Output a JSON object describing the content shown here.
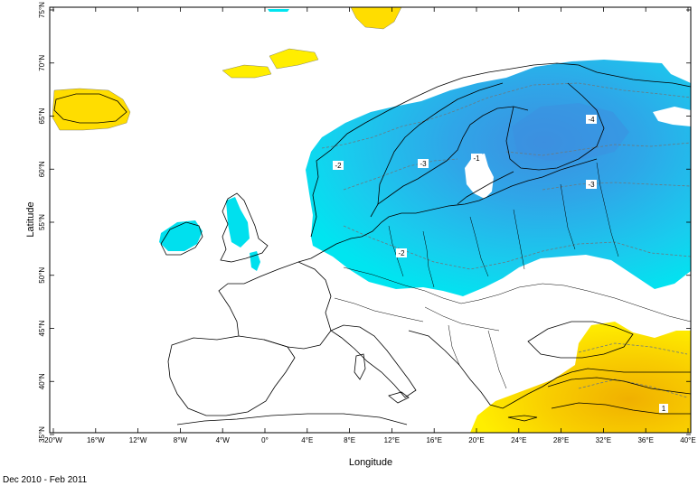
{
  "map": {
    "xlabel": "Longitude",
    "ylabel": "Latitude",
    "lon_range": [
      -20,
      40
    ],
    "lat_range": [
      35,
      75
    ],
    "lon_ticks": [
      "20°W",
      "16°W",
      "12°W",
      "8°W",
      "4°W",
      "0°",
      "4°E",
      "8°E",
      "12°E",
      "16°E",
      "20°E",
      "24°E",
      "28°E",
      "32°E",
      "36°E",
      "40°E"
    ],
    "lat_ticks": [
      "35°N",
      "40°N",
      "45°N",
      "50°N",
      "55°N",
      "60°N",
      "65°N",
      "70°N",
      "75°N"
    ],
    "contour_labels": [
      "-1",
      "-2",
      "-2",
      "-3",
      "-3",
      "-4",
      "1"
    ],
    "colors": {
      "cold_light": "#00e5f0",
      "cold_mid": "#20b8ea",
      "cold_deep": "#3d8fe0",
      "warm_light": "#ffee00",
      "warm_mid": "#f5c400",
      "warm_deep": "#e8a800"
    }
  },
  "footer": {
    "period": "Dec 2010 - Feb 2011"
  }
}
